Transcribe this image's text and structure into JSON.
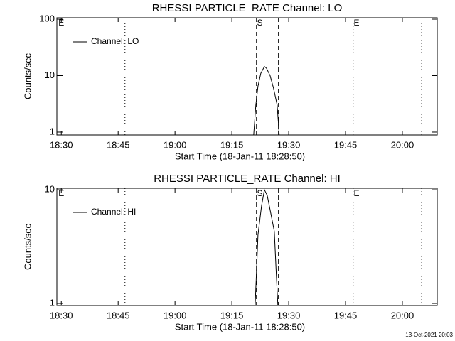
{
  "chart_data": [
    {
      "type": "line",
      "title": "RHESSI PARTICLE_RATE Channel: LO",
      "xlabel": "Start Time (18-Jan-11 18:28:50)",
      "ylabel": "Counts/sec",
      "log_y": true,
      "legend": "upper left",
      "x": [
        1160.77,
        1161.33,
        1161.9,
        1162.65,
        1163.6,
        1164.15,
        1165.1,
        1166.0,
        1166.96,
        1167.5
      ],
      "series": [
        {
          "name": "Channel: LO",
          "color": "#000000",
          "values": [
            0.9,
            3,
            6.5,
            11,
            14.5,
            13.5,
            10,
            6,
            3,
            0.9
          ]
        }
      ],
      "xlim": [
        1108.83,
        1209.2
      ],
      "ylim": [
        0.89,
        106
      ],
      "xticks": [
        {
          "value": 1110,
          "label": "18:30"
        },
        {
          "value": 1125,
          "label": "18:45"
        },
        {
          "value": 1140,
          "label": "19:00"
        },
        {
          "value": 1155,
          "label": "19:15"
        },
        {
          "value": 1170,
          "label": "19:30"
        },
        {
          "value": 1185,
          "label": "19:45"
        },
        {
          "value": 1200,
          "label": "20:00"
        }
      ],
      "yticks": [
        1,
        10,
        100
      ],
      "vlines": [
        {
          "x": 1126.8,
          "style": "dotted"
        },
        {
          "x": 1161.5,
          "style": "dashed"
        },
        {
          "x": 1167.3,
          "style": "dashed"
        },
        {
          "x": 1187.0,
          "style": "dotted"
        },
        {
          "x": 1205.1,
          "style": "dotted"
        }
      ],
      "flags": [
        {
          "x": 1110,
          "label": "E"
        },
        {
          "x": 1162.4,
          "label": "S"
        },
        {
          "x": 1187.9,
          "label": "E"
        }
      ]
    },
    {
      "type": "line",
      "title": "RHESSI PARTICLE_RATE Channel: HI",
      "xlabel": "Start Time (18-Jan-11 18:28:50)",
      "ylabel": "Counts/sec",
      "log_y": true,
      "legend": "upper left",
      "x": [
        1161.15,
        1161.9,
        1162.84,
        1163.6,
        1164.34,
        1165.28,
        1166.21,
        1166.77,
        1167.15
      ],
      "series": [
        {
          "name": "Channel: HI",
          "color": "#000000",
          "values": [
            0.96,
            4,
            7.2,
            10,
            8.9,
            6.2,
            4.3,
            1.7,
            0.96
          ]
        }
      ],
      "xlim": [
        1108.83,
        1209.2
      ],
      "ylim": [
        0.958,
        10.3
      ],
      "xticks": [
        {
          "value": 1110,
          "label": "18:30"
        },
        {
          "value": 1125,
          "label": "18:45"
        },
        {
          "value": 1140,
          "label": "19:00"
        },
        {
          "value": 1155,
          "label": "19:15"
        },
        {
          "value": 1170,
          "label": "19:30"
        },
        {
          "value": 1185,
          "label": "19:45"
        },
        {
          "value": 1200,
          "label": "20:00"
        }
      ],
      "yticks": [
        1,
        10
      ],
      "vlines": [
        {
          "x": 1126.8,
          "style": "dotted"
        },
        {
          "x": 1161.5,
          "style": "dashed"
        },
        {
          "x": 1167.3,
          "style": "dashed"
        },
        {
          "x": 1187.0,
          "style": "dotted"
        },
        {
          "x": 1205.1,
          "style": "dotted"
        }
      ],
      "flags": [
        {
          "x": 1110,
          "label": "E"
        },
        {
          "x": 1162.4,
          "label": "S"
        },
        {
          "x": 1187.9,
          "label": "E"
        }
      ]
    }
  ],
  "footer": "13-Oct-2021 20:03"
}
